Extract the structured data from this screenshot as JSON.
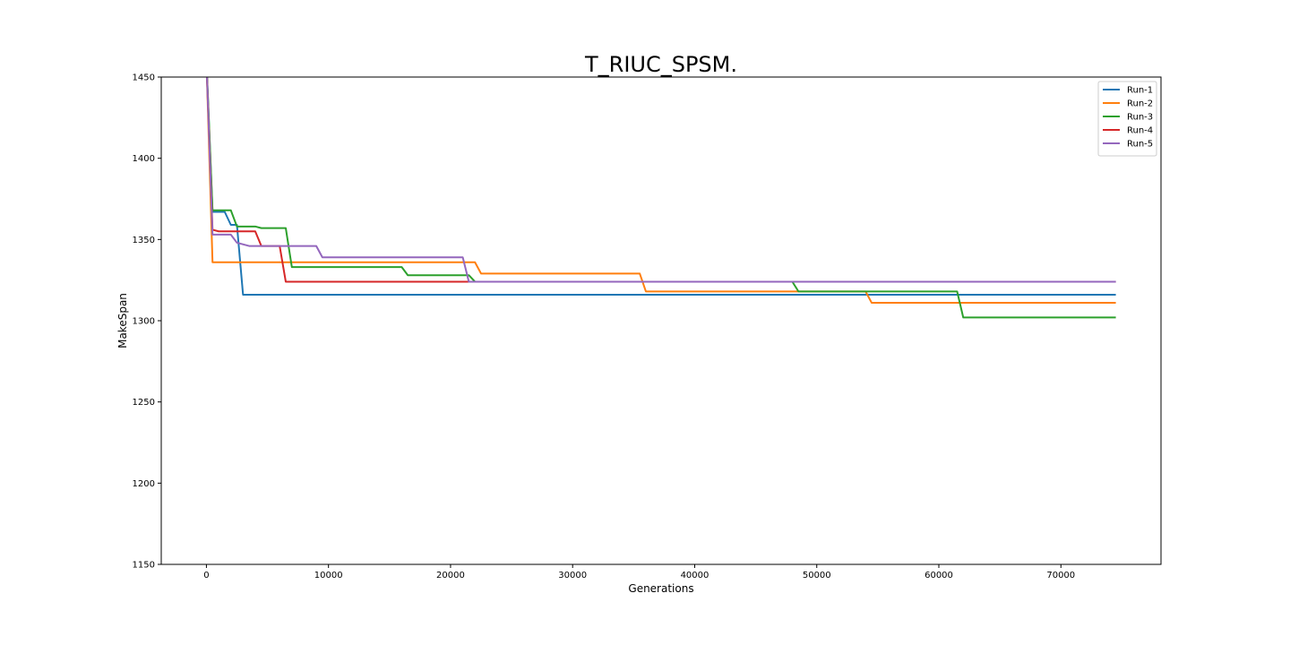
{
  "chart_data": {
    "type": "line",
    "title": "T_RIUC_SPSM.",
    "xlabel": "Generations",
    "ylabel": "MakeSpan",
    "xlim": [
      -3700,
      78200
    ],
    "ylim": [
      1150,
      1450
    ],
    "xticks": [
      0,
      10000,
      20000,
      30000,
      40000,
      50000,
      60000,
      70000
    ],
    "yticks": [
      1150,
      1200,
      1250,
      1300,
      1350,
      1400,
      1450
    ],
    "grid": false,
    "legend_position": "top-right",
    "series": [
      {
        "name": "Run-1",
        "color": "#1f77b4",
        "points": [
          [
            0,
            1460
          ],
          [
            500,
            1367
          ],
          [
            1500,
            1367
          ],
          [
            2000,
            1359
          ],
          [
            2500,
            1359
          ],
          [
            3000,
            1316
          ],
          [
            74500,
            1316
          ]
        ]
      },
      {
        "name": "Run-2",
        "color": "#ff7f0e",
        "points": [
          [
            0,
            1460
          ],
          [
            500,
            1336
          ],
          [
            22000,
            1336
          ],
          [
            22500,
            1329
          ],
          [
            35500,
            1329
          ],
          [
            36000,
            1318
          ],
          [
            54000,
            1318
          ],
          [
            54500,
            1311
          ],
          [
            74500,
            1311
          ]
        ]
      },
      {
        "name": "Run-3",
        "color": "#2ca02c",
        "points": [
          [
            0,
            1460
          ],
          [
            500,
            1368
          ],
          [
            2000,
            1368
          ],
          [
            2500,
            1358
          ],
          [
            4000,
            1358
          ],
          [
            4500,
            1357
          ],
          [
            6500,
            1357
          ],
          [
            7000,
            1333
          ],
          [
            16000,
            1333
          ],
          [
            16500,
            1328
          ],
          [
            21500,
            1328
          ],
          [
            22000,
            1324
          ],
          [
            48000,
            1324
          ],
          [
            48500,
            1318
          ],
          [
            61500,
            1318
          ],
          [
            62000,
            1302
          ],
          [
            74500,
            1302
          ]
        ]
      },
      {
        "name": "Run-4",
        "color": "#d62728",
        "points": [
          [
            0,
            1460
          ],
          [
            500,
            1356
          ],
          [
            1000,
            1355
          ],
          [
            4000,
            1355
          ],
          [
            4500,
            1346
          ],
          [
            6000,
            1346
          ],
          [
            6500,
            1324
          ],
          [
            74500,
            1324
          ]
        ]
      },
      {
        "name": "Run-5",
        "color": "#9467bd",
        "points": [
          [
            0,
            1460
          ],
          [
            500,
            1353
          ],
          [
            2000,
            1353
          ],
          [
            2500,
            1348
          ],
          [
            3500,
            1346
          ],
          [
            9000,
            1346
          ],
          [
            9500,
            1339
          ],
          [
            21000,
            1339
          ],
          [
            21500,
            1324
          ],
          [
            74500,
            1324
          ]
        ]
      }
    ]
  }
}
